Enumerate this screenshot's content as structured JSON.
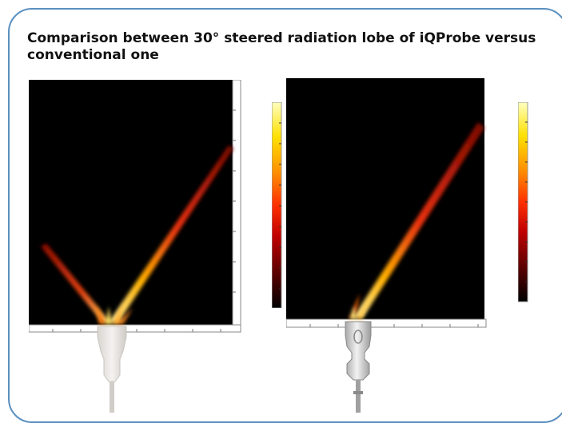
{
  "figure": {
    "title": "Comparison between 30° steered radiation lobe of iQProbe versus conventional one"
  },
  "panels": [
    {
      "subject": "conventional-probe",
      "lobes": [
        "steered-main-lobe",
        "grating-lobe"
      ]
    },
    {
      "subject": "iQProbe",
      "lobes": [
        "steered-main-lobe"
      ]
    }
  ],
  "colorbar": {
    "colormap": "hot",
    "colors": [
      "#000000",
      "#5a0000",
      "#c00000",
      "#ff3000",
      "#ff9000",
      "#ffe000",
      "#ffffc0"
    ]
  },
  "colors": {
    "border": "#5a8fc0",
    "field_background": "#000000"
  }
}
